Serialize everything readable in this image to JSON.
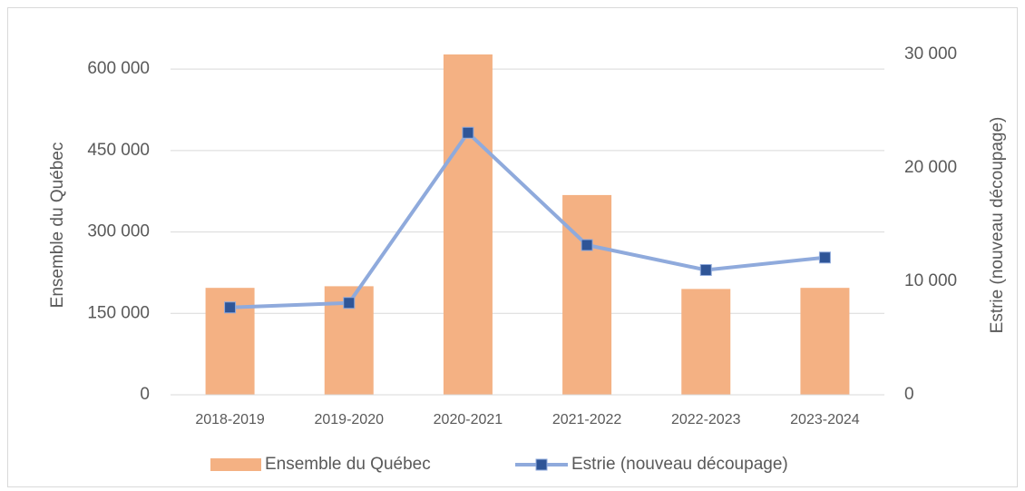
{
  "chart_data": {
    "type": "bar_line",
    "categories": [
      "2018-2019",
      "2019-2020",
      "2020-2021",
      "2021-2022",
      "2022-2023",
      "2023-2024"
    ],
    "ylabel": "Ensemble du Québec",
    "y2label": "Estrie (nouveau découpage)",
    "ylim": [
      0,
      627000
    ],
    "yticks": [
      0,
      {
        "value": 150000,
        "label": "150 000"
      },
      {
        "value": 300000,
        "label": "300 000"
      },
      {
        "value": 450000,
        "label": "450 000"
      },
      {
        "value": 600000,
        "label": "600 000"
      }
    ],
    "y2lim": [
      0,
      30000
    ],
    "y2ticks": [
      0,
      {
        "value": 10000,
        "label": "10 000"
      },
      {
        "value": 20000,
        "label": "20 000"
      },
      {
        "value": 30000,
        "label": "30 000"
      }
    ],
    "grid": true,
    "legend": "bottom",
    "series": [
      {
        "name": "Ensemble du Québec",
        "type": "bar",
        "color": "#f4b183",
        "values": [
          197000,
          200000,
          627000,
          368000,
          195000,
          197000
        ]
      },
      {
        "name": "Estrie (nouveau découpage)",
        "type": "line",
        "axis": "y2",
        "color": "#8faadc",
        "marker_color": "#2f5597",
        "values": [
          7700,
          8100,
          23100,
          13200,
          11000,
          12100
        ]
      }
    ]
  }
}
